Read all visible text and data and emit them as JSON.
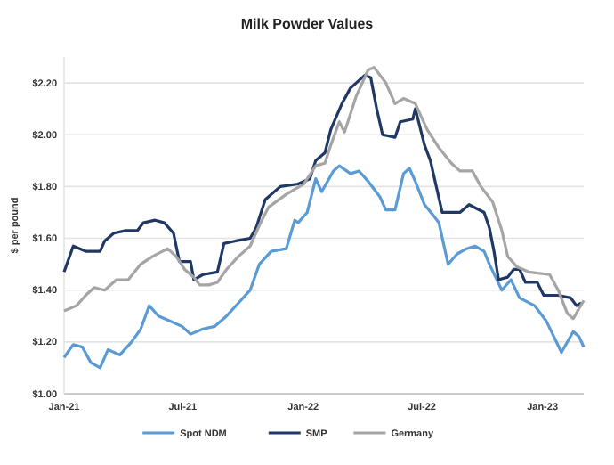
{
  "chart_data": {
    "type": "line",
    "title": "Milk Powder Values",
    "ylabel": "$ per pound",
    "xlim": [
      "2021-01-01",
      "2023-03-05"
    ],
    "xticks": [
      {
        "value": "2021-01-01",
        "label": "Jan-21"
      },
      {
        "value": "2021-07-01",
        "label": "Jul-21"
      },
      {
        "value": "2022-01-01",
        "label": "Jan-22"
      },
      {
        "value": "2022-07-01",
        "label": "Jul-22"
      },
      {
        "value": "2023-01-01",
        "label": "Jan-23"
      }
    ],
    "ylim": [
      1.0,
      2.3
    ],
    "yticks": [
      {
        "value": 1.0,
        "label": "$1.00"
      },
      {
        "value": 1.2,
        "label": "$1.20"
      },
      {
        "value": 1.4,
        "label": "$1.40"
      },
      {
        "value": 1.6,
        "label": "$1.60"
      },
      {
        "value": 1.8,
        "label": "$1.80"
      },
      {
        "value": 2.0,
        "label": "$2.00"
      },
      {
        "value": 2.2,
        "label": "$2.20"
      }
    ],
    "grid": "y",
    "legend": "bottom",
    "marker": "none",
    "line_style": "solid",
    "series": [
      {
        "name": "Spot NDM",
        "color": "#5b9bd5",
        "x": [
          "2021-01-01",
          "2021-01-15",
          "2021-01-29",
          "2021-02-11",
          "2021-02-25",
          "2021-03-09",
          "2021-03-27",
          "2021-04-14",
          "2021-04-28",
          "2021-05-11",
          "2021-05-25",
          "2021-06-12",
          "2021-06-30",
          "2021-07-13",
          "2021-08-01",
          "2021-08-19",
          "2021-09-06",
          "2021-09-24",
          "2021-10-12",
          "2021-10-26",
          "2021-11-13",
          "2021-12-06",
          "2021-12-19",
          "2021-12-24",
          "2022-01-07",
          "2022-01-20",
          "2022-01-29",
          "2022-02-16",
          "2022-02-25",
          "2022-03-14",
          "2022-03-27",
          "2022-04-10",
          "2022-04-28",
          "2022-05-07",
          "2022-05-21",
          "2022-06-03",
          "2022-06-12",
          "2022-06-21",
          "2022-07-05",
          "2022-07-18",
          "2022-07-27",
          "2022-08-10",
          "2022-08-24",
          "2022-09-07",
          "2022-09-20",
          "2022-10-04",
          "2022-10-12",
          "2022-10-31",
          "2022-11-14",
          "2022-11-27",
          "2022-12-20",
          "2023-01-07",
          "2023-01-30",
          "2023-02-17",
          "2023-02-26",
          "2023-03-05"
        ],
        "values": [
          1.14,
          1.19,
          1.18,
          1.12,
          1.1,
          1.17,
          1.15,
          1.2,
          1.25,
          1.34,
          1.3,
          1.28,
          1.26,
          1.23,
          1.25,
          1.26,
          1.3,
          1.35,
          1.4,
          1.5,
          1.55,
          1.56,
          1.67,
          1.66,
          1.7,
          1.83,
          1.78,
          1.86,
          1.88,
          1.85,
          1.86,
          1.82,
          1.76,
          1.71,
          1.71,
          1.85,
          1.87,
          1.82,
          1.73,
          1.69,
          1.66,
          1.5,
          1.54,
          1.56,
          1.57,
          1.55,
          1.5,
          1.4,
          1.44,
          1.37,
          1.34,
          1.28,
          1.16,
          1.24,
          1.22,
          1.18
        ]
      },
      {
        "name": "SMP",
        "color": "#203864",
        "x": [
          "2021-01-01",
          "2021-01-15",
          "2021-02-03",
          "2021-02-25",
          "2021-03-04",
          "2021-03-18",
          "2021-04-05",
          "2021-04-23",
          "2021-05-02",
          "2021-05-20",
          "2021-06-03",
          "2021-06-17",
          "2021-06-26",
          "2021-07-13",
          "2021-07-18",
          "2021-08-01",
          "2021-08-23",
          "2021-09-02",
          "2021-09-20",
          "2021-10-12",
          "2021-10-21",
          "2021-11-04",
          "2021-11-27",
          "2021-12-24",
          "2022-01-11",
          "2022-01-20",
          "2022-02-03",
          "2022-02-12",
          "2022-03-01",
          "2022-03-14",
          "2022-04-05",
          "2022-04-14",
          "2022-04-23",
          "2022-05-02",
          "2022-05-21",
          "2022-05-29",
          "2022-06-17",
          "2022-06-21",
          "2022-07-05",
          "2022-07-14",
          "2022-08-01",
          "2022-08-28",
          "2022-09-11",
          "2022-10-04",
          "2022-10-12",
          "2022-10-19",
          "2022-10-26",
          "2022-11-09",
          "2022-11-18",
          "2022-11-27",
          "2022-12-06",
          "2022-12-24",
          "2023-01-03",
          "2023-01-25",
          "2023-02-13",
          "2023-02-22",
          "2023-03-01"
        ],
        "values": [
          1.47,
          1.57,
          1.55,
          1.55,
          1.59,
          1.62,
          1.63,
          1.63,
          1.66,
          1.67,
          1.66,
          1.62,
          1.51,
          1.51,
          1.44,
          1.46,
          1.47,
          1.58,
          1.59,
          1.6,
          1.64,
          1.75,
          1.8,
          1.81,
          1.83,
          1.9,
          1.93,
          2.02,
          2.12,
          2.18,
          2.23,
          2.22,
          2.1,
          2.0,
          1.99,
          2.05,
          2.06,
          2.1,
          1.96,
          1.9,
          1.7,
          1.7,
          1.73,
          1.7,
          1.64,
          1.55,
          1.44,
          1.45,
          1.48,
          1.48,
          1.43,
          1.43,
          1.38,
          1.38,
          1.37,
          1.34,
          1.35
        ]
      },
      {
        "name": "Germany",
        "color": "#a5a5a5",
        "x": [
          "2021-01-01",
          "2021-01-20",
          "2021-02-03",
          "2021-02-16",
          "2021-03-04",
          "2021-03-22",
          "2021-04-09",
          "2021-04-28",
          "2021-05-16",
          "2021-06-08",
          "2021-06-21",
          "2021-07-04",
          "2021-07-18",
          "2021-07-27",
          "2021-08-10",
          "2021-08-23",
          "2021-09-06",
          "2021-09-24",
          "2021-10-12",
          "2021-10-26",
          "2021-11-09",
          "2021-12-06",
          "2022-01-02",
          "2022-01-20",
          "2022-02-03",
          "2022-02-12",
          "2022-02-25",
          "2022-03-05",
          "2022-03-23",
          "2022-04-10",
          "2022-04-19",
          "2022-05-07",
          "2022-05-21",
          "2022-06-03",
          "2022-06-21",
          "2022-07-09",
          "2022-07-27",
          "2022-08-15",
          "2022-08-28",
          "2022-09-16",
          "2022-09-29",
          "2022-10-17",
          "2022-10-31",
          "2022-11-09",
          "2022-11-23",
          "2022-12-11",
          "2023-01-12",
          "2023-01-25",
          "2023-02-08",
          "2023-02-17",
          "2023-02-26",
          "2023-03-05"
        ],
        "values": [
          1.32,
          1.34,
          1.38,
          1.41,
          1.4,
          1.44,
          1.44,
          1.5,
          1.53,
          1.56,
          1.53,
          1.48,
          1.45,
          1.42,
          1.42,
          1.43,
          1.48,
          1.53,
          1.57,
          1.65,
          1.72,
          1.77,
          1.81,
          1.88,
          1.89,
          1.96,
          2.05,
          2.01,
          2.15,
          2.25,
          2.26,
          2.2,
          2.12,
          2.14,
          2.12,
          2.02,
          1.95,
          1.89,
          1.86,
          1.86,
          1.8,
          1.74,
          1.63,
          1.53,
          1.49,
          1.47,
          1.46,
          1.4,
          1.31,
          1.29,
          1.33,
          1.36
        ]
      }
    ]
  }
}
